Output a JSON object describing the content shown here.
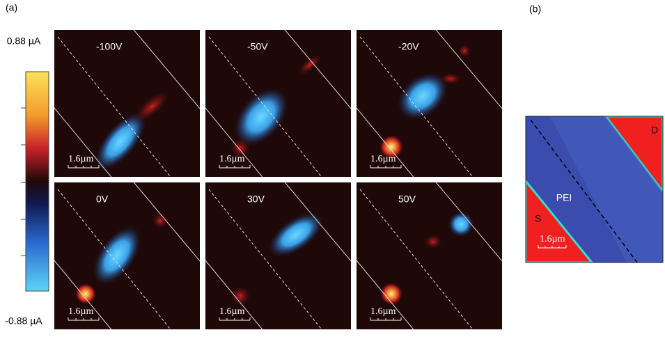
{
  "panel_a": {
    "label": "(a)",
    "colorbar": {
      "max": "0.88 µA",
      "min": "-0.88 µA"
    },
    "images": [
      {
        "voltage": "-100V",
        "scale_bar": "1.6µm"
      },
      {
        "voltage": "-50V",
        "scale_bar": "1.6µm"
      },
      {
        "voltage": "-20V",
        "scale_bar": "1.6µm"
      },
      {
        "voltage": "0V",
        "scale_bar": "1.6µm"
      },
      {
        "voltage": "30V",
        "scale_bar": "1.6µm"
      },
      {
        "voltage": "50V",
        "scale_bar": "1.6µm"
      }
    ]
  },
  "panel_b": {
    "label": "(b)",
    "material": "PEI",
    "source": "S",
    "drain": "D",
    "scale_bar": "1.6µm"
  }
}
